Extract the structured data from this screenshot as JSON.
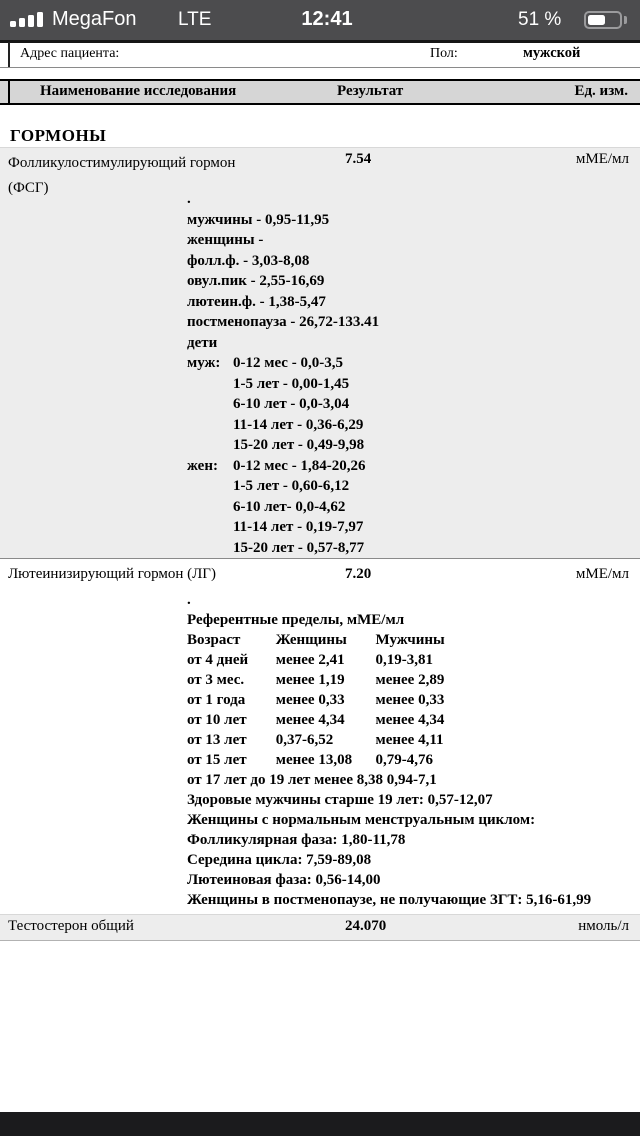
{
  "colors": {
    "status_bar_bg": "#4c4c4e",
    "bottom_bar_bg": "#1b1b1d",
    "row_highlight": "#ededed",
    "header_band": "#d6d6d6"
  },
  "status_bar": {
    "carrier": "MegaFon",
    "network": "LTE",
    "time": "12:41",
    "battery_percent": "51 %",
    "battery_level": 51,
    "signal_bars": 4
  },
  "patient_header": {
    "address_label": "Адрес пациента:",
    "sex_label": "Пол:",
    "sex_value": "мужской"
  },
  "table_header": {
    "name": "Наименование исследования",
    "result": "Результат",
    "units": "Ед. изм."
  },
  "section_title": "ГОРМОНЫ",
  "tests": {
    "fsh": {
      "name_line1": "Фолликулостимулирующий гормон",
      "name_line2": "(ФСГ)",
      "result": "7.54",
      "unit": "мМЕ/мл",
      "ref_lines": [
        {
          "text": "."
        },
        {
          "text": "мужчины - 0,95-11,95"
        },
        {
          "text": "женщины -"
        },
        {
          "text": "фолл.ф. - 3,03-8,08"
        },
        {
          "text": "овул.пик - 2,55-16,69"
        },
        {
          "text": "лютеин.ф. - 1,38-5,47"
        },
        {
          "text": "постменопауза - 26,72-133.41"
        },
        {
          "text": "дети"
        },
        {
          "prefix": "муж:",
          "text": "0-12 мес - 0,0-3,5"
        },
        {
          "text": "1-5 лет - 0,00-1,45"
        },
        {
          "text": "6-10 лет - 0,0-3,04"
        },
        {
          "text": "11-14 лет - 0,36-6,29"
        },
        {
          "text": "15-20 лет - 0,49-9,98"
        },
        {
          "prefix": "жен:",
          "text": "0-12 мес - 1,84-20,26"
        },
        {
          "text": "1-5 лет - 0,60-6,12"
        },
        {
          "text": "6-10 лет- 0,0-4,62"
        },
        {
          "text": "11-14 лет - 0,19-7,97"
        },
        {
          "text": "15-20 лет - 0,57-8,77"
        }
      ]
    },
    "lh": {
      "name": "Лютеинизирующий гормон (ЛГ)",
      "result": "7.20",
      "unit": "мМЕ/мл",
      "ref_dot": ".",
      "ref_title": "Референтные пределы, мМЕ/мл",
      "ref_table": {
        "header": {
          "age": "Возраст",
          "women": "Женщины",
          "men": "Мужчины"
        },
        "rows": [
          {
            "age": "от 4 дней",
            "women": "менее 2,41",
            "men": "0,19-3,81"
          },
          {
            "age": "от 3 мес.",
            "women": "менее 1,19",
            "men": "менее 2,89"
          },
          {
            "age": "от 1 года",
            "women": "менее 0,33",
            "men": "менее 0,33"
          },
          {
            "age": "от 10 лет",
            "women": "менее 4,34",
            "men": "менее 4,34"
          },
          {
            "age": "от 13 лет",
            "women": "0,37-6,52",
            "men": "менее 4,11"
          },
          {
            "age": "от 15 лет",
            "women": "менее 13,08",
            "men": "0,79-4,76"
          }
        ]
      },
      "ref_notes": [
        "от 17 лет до 19 лет менее 8,38 0,94-7,1",
        "Здоровые мужчины старше 19 лет: 0,57-12,07",
        "Женщины с нормальным менструальным циклом:",
        "Фолликулярная фаза: 1,80-11,78",
        "Середина цикла: 7,59-89,08",
        "Лютеиновая фаза: 0,56-14,00",
        "Женщины в постменопаузе, не получающие ЗГТ: 5,16-61,99"
      ]
    },
    "testosterone": {
      "name": "Тестостерон общий",
      "result": "24.070",
      "unit": "нмоль/л"
    }
  }
}
